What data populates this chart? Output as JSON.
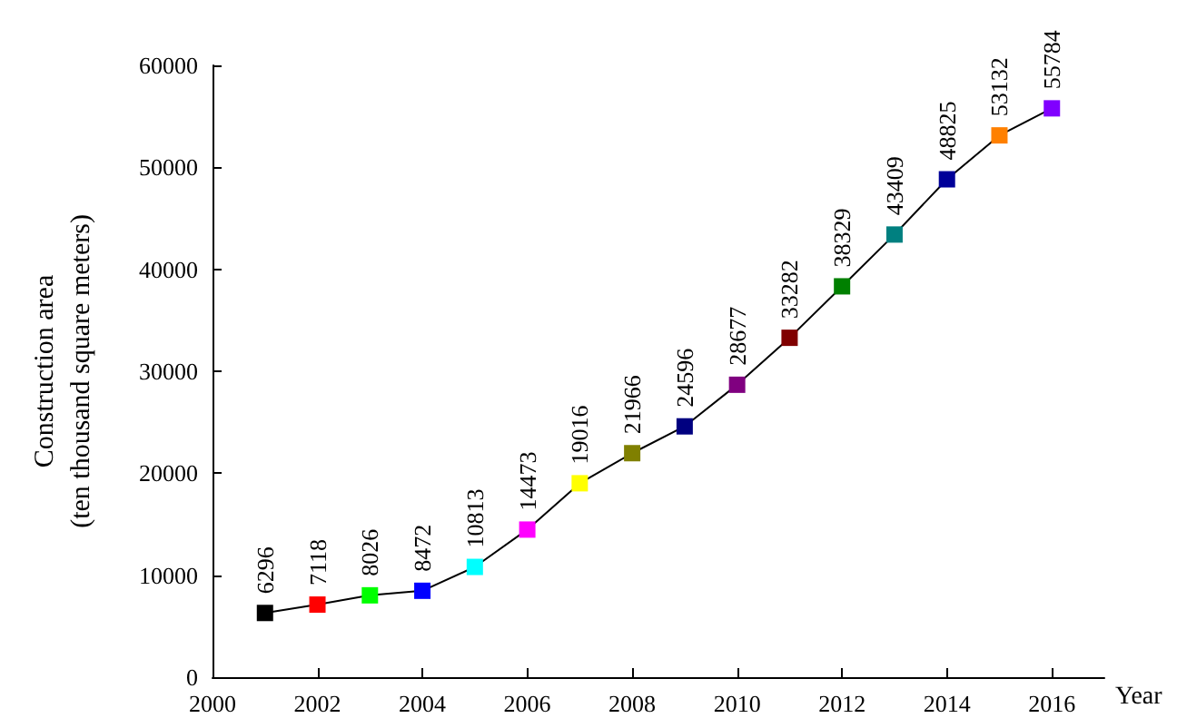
{
  "chart_data": {
    "type": "line",
    "xlabel": "Year",
    "ylabel": "Construction area\n(ten thousand square meters)",
    "x": [
      2001,
      2002,
      2003,
      2004,
      2005,
      2006,
      2007,
      2008,
      2009,
      2010,
      2011,
      2012,
      2013,
      2014,
      2015,
      2016
    ],
    "series": [
      {
        "color": "#000000",
        "values": [
          6296,
          7118,
          8026,
          8472,
          10813,
          14473,
          19016,
          21966,
          24596,
          28677,
          33282,
          38329,
          43409,
          48825,
          53132,
          55784
        ],
        "colors": [
          "#000000",
          "#ff0000",
          "#00ff00",
          "#0000ff",
          "#00ffff",
          "#ff00ff",
          "#ffff00",
          "#808000",
          "#000080",
          "#800080",
          "#800000",
          "#008000",
          "#008080",
          "#000099",
          "#ff8000",
          "#8000ff"
        ]
      }
    ],
    "xlim": [
      2000,
      2017
    ],
    "xticks": [
      2000,
      2002,
      2004,
      2006,
      2008,
      2010,
      2012,
      2014,
      2016
    ],
    "ylim": [
      0,
      60000
    ],
    "yticks": [
      0,
      10000,
      20000,
      30000,
      40000,
      50000,
      60000
    ],
    "data_labels": true,
    "marker": "square",
    "line_style": "solid",
    "grid": false
  }
}
